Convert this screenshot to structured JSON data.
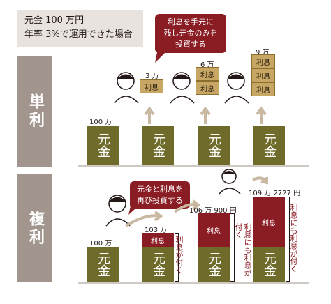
{
  "header": {
    "line1": "元金 100 万円",
    "line2": "年率 3%で運用できた場合"
  },
  "simple": {
    "section_label": "単利",
    "bubble": [
      "利息を手元に",
      "残し元金のみを",
      "投資する"
    ],
    "principal_label": "100 万",
    "principal_text": "元金",
    "interest_text": "利息",
    "amounts": [
      "3 万",
      "6 万",
      "9 万"
    ]
  },
  "compound": {
    "section_label": "複利",
    "bubble": [
      "元金と利息を",
      "再び投資する"
    ],
    "principal_label": "100 万",
    "principal_text": "元金",
    "interest_text": "利息",
    "totals": [
      "103 万",
      "106 万 900 円",
      "109 万 2727 円"
    ],
    "side_note_1": "利息が付く",
    "side_note_2": "利息にも利息が付く",
    "side_note_3": "利息にも利息が付く"
  },
  "colors": {
    "principal": "#6f6b2a",
    "interest_gold": "#c8a664",
    "interest_red": "#8a1d24",
    "band": "#a1958d",
    "arrow": "#c9b9a3"
  }
}
